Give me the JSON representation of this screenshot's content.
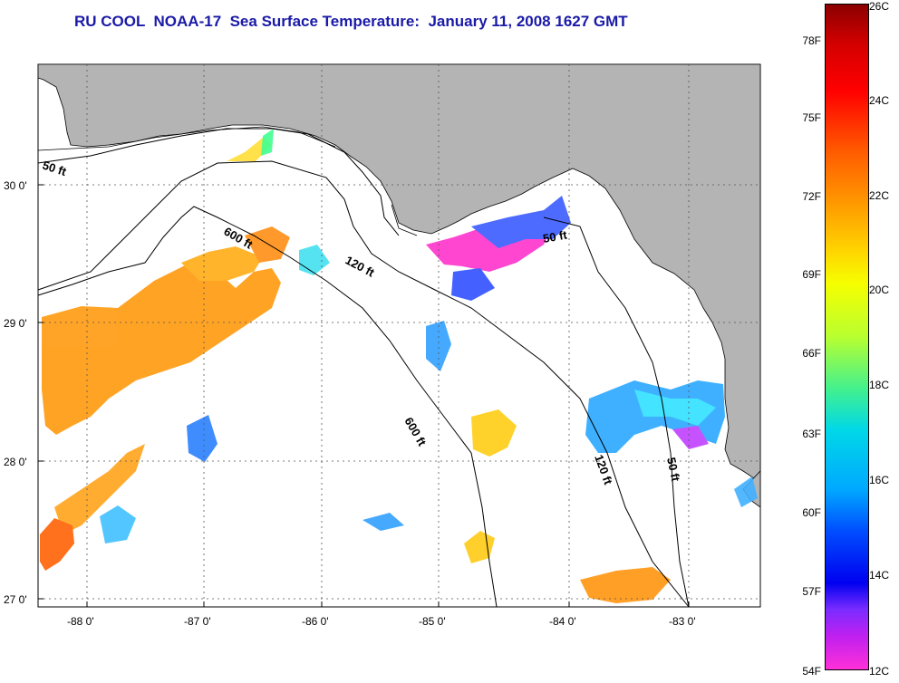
{
  "title": "RU COOL  NOAA-17  Sea Surface Temperature:  January 11, 2008 1627 GMT",
  "map": {
    "lat_labels": [
      "30 0'",
      "29 0'",
      "28 0'",
      "27 0'"
    ],
    "lon_labels": [
      "-88 0'",
      "-87 0'",
      "-86 0'",
      "-85 0'",
      "-84 0'",
      "-83 0'"
    ],
    "contour_labels": [
      "50 ft",
      "600 ft",
      "120 ft",
      "50 ft",
      "600 ft",
      "120 ft",
      "50 ft"
    ],
    "land_color": "#b4b4b4",
    "grid": "dotted"
  },
  "colorbar": {
    "fahrenheit_labels": [
      "78F",
      "75F",
      "72F",
      "69F",
      "66F",
      "63F",
      "60F",
      "57F",
      "54F"
    ],
    "celsius_labels": [
      "26C",
      "24C",
      "22C",
      "20C",
      "18C",
      "16C",
      "14C",
      "12C"
    ],
    "range_c": [
      12,
      26
    ],
    "range_f": [
      54,
      78
    ]
  }
}
